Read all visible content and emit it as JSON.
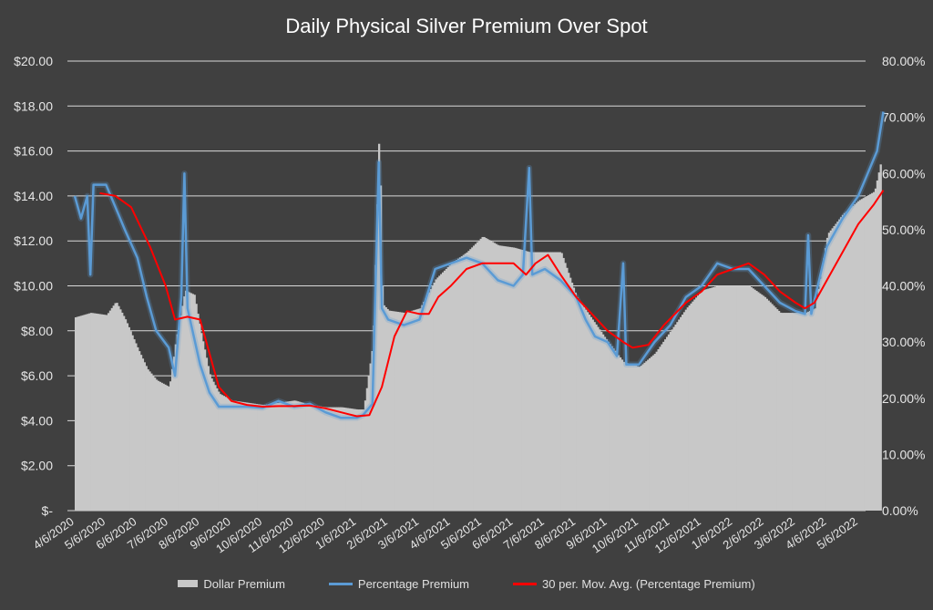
{
  "chart_data": {
    "type": "bar",
    "title": "Daily Physical Silver Premium Over Spot",
    "colors": {
      "background": "#404040",
      "bars": "#c8c8c8",
      "pct_line": "#5b9bd5",
      "ma_line": "#ff0000",
      "grid": "#d9d9d9",
      "text": "#e6e6e6"
    },
    "left_axis": {
      "ticks": [
        "$-",
        "$2.00",
        "$4.00",
        "$6.00",
        "$8.00",
        "$10.00",
        "$12.00",
        "$14.00",
        "$16.00",
        "$18.00",
        "$20.00"
      ],
      "min": 0,
      "max": 20
    },
    "right_axis": {
      "ticks": [
        "0.00%",
        "10.00%",
        "20.00%",
        "30.00%",
        "40.00%",
        "50.00%",
        "60.00%",
        "70.00%",
        "80.00%"
      ],
      "min": 0,
      "max": 80
    },
    "x_ticks": [
      "4/6/2020",
      "5/6/2020",
      "6/6/2020",
      "7/6/2020",
      "8/6/2020",
      "9/6/2020",
      "10/6/2020",
      "11/6/2020",
      "12/6/2020",
      "1/6/2021",
      "2/6/2021",
      "3/6/2021",
      "4/6/2021",
      "5/6/2021",
      "6/6/2021",
      "7/6/2021",
      "8/6/2021",
      "9/6/2021",
      "10/6/2021",
      "11/6/2021",
      "12/6/2021",
      "1/6/2022",
      "2/6/2022",
      "3/6/2022",
      "4/6/2022",
      "5/6/2022"
    ],
    "grid": true,
    "legend_position": "bottom",
    "series": [
      {
        "name": "Dollar Premium",
        "kind": "bar",
        "axis": "left",
        "points": [
          [
            0,
            8.6
          ],
          [
            0.5,
            8.8
          ],
          [
            1,
            8.7
          ],
          [
            1.3,
            9.3
          ],
          [
            1.6,
            8.5
          ],
          [
            2,
            7.2
          ],
          [
            2.3,
            6.3
          ],
          [
            2.6,
            5.8
          ],
          [
            3,
            5.5
          ],
          [
            3.2,
            7.5
          ],
          [
            3.5,
            9.8
          ],
          [
            3.8,
            9.6
          ],
          [
            4,
            8.0
          ],
          [
            4.3,
            6.0
          ],
          [
            4.6,
            5.2
          ],
          [
            5,
            4.9
          ],
          [
            5.5,
            4.8
          ],
          [
            6,
            4.7
          ],
          [
            6.5,
            4.8
          ],
          [
            7,
            4.9
          ],
          [
            7.5,
            4.7
          ],
          [
            8,
            4.6
          ],
          [
            8.5,
            4.6
          ],
          [
            9,
            4.5
          ],
          [
            9.2,
            4.5
          ],
          [
            9.5,
            7.5
          ],
          [
            9.7,
            17.3
          ],
          [
            9.8,
            9.2
          ],
          [
            10,
            8.9
          ],
          [
            10.5,
            8.8
          ],
          [
            11,
            9.0
          ],
          [
            11.5,
            10.3
          ],
          [
            12,
            11.0
          ],
          [
            12.5,
            11.5
          ],
          [
            13,
            12.2
          ],
          [
            13.5,
            11.8
          ],
          [
            14,
            11.7
          ],
          [
            14.5,
            11.5
          ],
          [
            15,
            11.5
          ],
          [
            15.5,
            11.5
          ],
          [
            16,
            9.5
          ],
          [
            16.5,
            8.5
          ],
          [
            17,
            7.5
          ],
          [
            17.5,
            6.6
          ],
          [
            18,
            6.4
          ],
          [
            18.5,
            7.0
          ],
          [
            19,
            8.0
          ],
          [
            19.5,
            9.0
          ],
          [
            20,
            9.8
          ],
          [
            20.5,
            10.0
          ],
          [
            21,
            10.0
          ],
          [
            21.5,
            10.0
          ],
          [
            22,
            9.5
          ],
          [
            22.5,
            8.8
          ],
          [
            23,
            8.8
          ],
          [
            23.3,
            8.8
          ],
          [
            23.6,
            9.0
          ],
          [
            24,
            12.3
          ],
          [
            24.5,
            13.2
          ],
          [
            25,
            13.8
          ],
          [
            25.5,
            14.2
          ],
          [
            25.7,
            15.5
          ]
        ]
      },
      {
        "name": "Percentage Premium",
        "kind": "line",
        "axis": "right",
        "points": [
          [
            0,
            56
          ],
          [
            0.2,
            52
          ],
          [
            0.4,
            56
          ],
          [
            0.5,
            42
          ],
          [
            0.6,
            58
          ],
          [
            1,
            58
          ],
          [
            1.3,
            54
          ],
          [
            1.6,
            50
          ],
          [
            2,
            45
          ],
          [
            2.3,
            38
          ],
          [
            2.6,
            32
          ],
          [
            3,
            29
          ],
          [
            3.2,
            24
          ],
          [
            3.4,
            38
          ],
          [
            3.5,
            60
          ],
          [
            3.6,
            36
          ],
          [
            4,
            26
          ],
          [
            4.3,
            21
          ],
          [
            4.6,
            18.5
          ],
          [
            5,
            18.5
          ],
          [
            5.5,
            18.5
          ],
          [
            6,
            18.3
          ],
          [
            6.5,
            19.5
          ],
          [
            7,
            18.5
          ],
          [
            7.5,
            19
          ],
          [
            8,
            17.5
          ],
          [
            8.5,
            16.5
          ],
          [
            9,
            16.5
          ],
          [
            9.2,
            17
          ],
          [
            9.5,
            19
          ],
          [
            9.7,
            62
          ],
          [
            9.8,
            36
          ],
          [
            10,
            34
          ],
          [
            10.5,
            33
          ],
          [
            11,
            34
          ],
          [
            11.5,
            43
          ],
          [
            12,
            44
          ],
          [
            12.5,
            45
          ],
          [
            13,
            44
          ],
          [
            13.5,
            41
          ],
          [
            14,
            40
          ],
          [
            14.3,
            42
          ],
          [
            14.5,
            61
          ],
          [
            14.6,
            42
          ],
          [
            15,
            43
          ],
          [
            15.5,
            41
          ],
          [
            16,
            38
          ],
          [
            16.3,
            34
          ],
          [
            16.6,
            31
          ],
          [
            17,
            30
          ],
          [
            17.3,
            27.5
          ],
          [
            17.5,
            44
          ],
          [
            17.6,
            26
          ],
          [
            18,
            26
          ],
          [
            18.5,
            30
          ],
          [
            19,
            33
          ],
          [
            19.5,
            38
          ],
          [
            20,
            40
          ],
          [
            20.5,
            44
          ],
          [
            21,
            43
          ],
          [
            21.5,
            43
          ],
          [
            22,
            40
          ],
          [
            22.5,
            37
          ],
          [
            23,
            35.5
          ],
          [
            23.3,
            35
          ],
          [
            23.4,
            49
          ],
          [
            23.5,
            35
          ],
          [
            24,
            47
          ],
          [
            24.5,
            52
          ],
          [
            25,
            56
          ],
          [
            25.3,
            60
          ],
          [
            25.6,
            64
          ],
          [
            25.8,
            71
          ]
        ]
      },
      {
        "name": "30 per. Mov. Avg. (Percentage Premium)",
        "kind": "line",
        "axis": "right",
        "points": [
          [
            0.8,
            56.5
          ],
          [
            1.3,
            56
          ],
          [
            1.8,
            54
          ],
          [
            2.4,
            47
          ],
          [
            2.9,
            40
          ],
          [
            3.2,
            34
          ],
          [
            3.6,
            34.5
          ],
          [
            4,
            34
          ],
          [
            4.3,
            28
          ],
          [
            4.6,
            22
          ],
          [
            5,
            19.5
          ],
          [
            5.5,
            18.8
          ],
          [
            6,
            18.5
          ],
          [
            6.5,
            18.6
          ],
          [
            7,
            18.6
          ],
          [
            7.5,
            18.7
          ],
          [
            8,
            18.2
          ],
          [
            8.5,
            17.5
          ],
          [
            9,
            16.8
          ],
          [
            9.4,
            17
          ],
          [
            9.8,
            22
          ],
          [
            10.2,
            31
          ],
          [
            10.6,
            35.5
          ],
          [
            11,
            35
          ],
          [
            11.3,
            35
          ],
          [
            11.6,
            38
          ],
          [
            12,
            40
          ],
          [
            12.5,
            43
          ],
          [
            13,
            44
          ],
          [
            13.5,
            44
          ],
          [
            14,
            44
          ],
          [
            14.4,
            42
          ],
          [
            14.7,
            44
          ],
          [
            15.1,
            45.5
          ],
          [
            15.5,
            42
          ],
          [
            16,
            38
          ],
          [
            16.5,
            35
          ],
          [
            17,
            32
          ],
          [
            17.5,
            30
          ],
          [
            17.8,
            29
          ],
          [
            18.3,
            29.5
          ],
          [
            18.8,
            33
          ],
          [
            19.5,
            37
          ],
          [
            20,
            39
          ],
          [
            20.5,
            42
          ],
          [
            21,
            43
          ],
          [
            21.5,
            44
          ],
          [
            22,
            42
          ],
          [
            22.5,
            39
          ],
          [
            23,
            37
          ],
          [
            23.3,
            36
          ],
          [
            23.6,
            37
          ],
          [
            24,
            41
          ],
          [
            24.5,
            46
          ],
          [
            25,
            51
          ],
          [
            25.5,
            54.5
          ],
          [
            25.8,
            57
          ]
        ]
      }
    ]
  }
}
